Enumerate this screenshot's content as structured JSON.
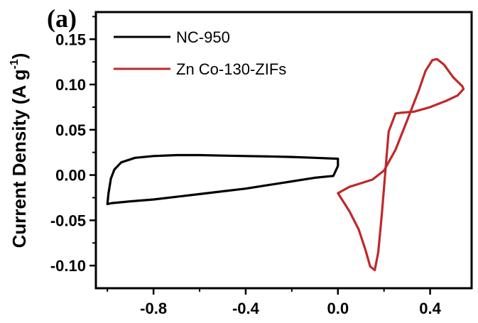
{
  "chart_data": {
    "type": "line",
    "panel_label": "(a)",
    "ylabel": "Current Density (A g",
    "ylabel_sup": "-1",
    "ylabel_close": ")",
    "xlabel": "",
    "xlim": [
      -1.05,
      0.58
    ],
    "ylim": [
      -0.125,
      0.18
    ],
    "xticks": [
      -0.8,
      -0.4,
      0.0,
      0.4
    ],
    "xtick_labels": [
      "-0.8",
      "-0.4",
      "0.0",
      "0.4"
    ],
    "yticks": [
      0.15,
      0.1,
      0.05,
      0.0,
      -0.05,
      -0.1
    ],
    "ytick_labels": [
      "0.15",
      "0.10",
      "0.05",
      "0.00",
      "-0.05",
      "-0.10"
    ],
    "legend_position": "top-left",
    "series": [
      {
        "name": "NC-950",
        "color": "#000000",
        "x": [
          0.0,
          -0.1,
          -0.2,
          -0.3,
          -0.4,
          -0.5,
          -0.6,
          -0.7,
          -0.8,
          -0.88,
          -0.94,
          -0.97,
          -0.985,
          -0.995,
          -1.0,
          -0.98,
          -0.9,
          -0.8,
          -0.7,
          -0.6,
          -0.5,
          -0.4,
          -0.3,
          -0.2,
          -0.1,
          -0.02,
          0.0,
          0.0
        ],
        "y": [
          0.018,
          0.019,
          0.02,
          0.0205,
          0.021,
          0.0215,
          0.022,
          0.022,
          0.021,
          0.019,
          0.014,
          0.006,
          -0.004,
          -0.02,
          -0.032,
          -0.031,
          -0.029,
          -0.027,
          -0.024,
          -0.021,
          -0.018,
          -0.015,
          -0.011,
          -0.007,
          -0.003,
          -0.001,
          0.01,
          0.018
        ]
      },
      {
        "name": "Zn Co-130-ZIFs",
        "color": "#c0282a",
        "x": [
          0.0,
          0.05,
          0.1,
          0.15,
          0.2,
          0.25,
          0.3,
          0.35,
          0.38,
          0.41,
          0.43,
          0.46,
          0.5,
          0.54,
          0.545,
          0.52,
          0.47,
          0.4,
          0.33,
          0.28,
          0.25,
          0.22,
          0.19,
          0.175,
          0.16,
          0.14,
          0.12,
          0.09,
          0.05,
          0.0
        ],
        "y": [
          -0.02,
          -0.013,
          -0.009,
          -0.005,
          0.005,
          0.028,
          0.06,
          0.093,
          0.115,
          0.127,
          0.128,
          0.122,
          0.108,
          0.098,
          0.095,
          0.088,
          0.082,
          0.075,
          0.07,
          0.069,
          0.068,
          0.048,
          -0.045,
          -0.085,
          -0.105,
          -0.101,
          -0.083,
          -0.06,
          -0.04,
          -0.02
        ]
      }
    ]
  }
}
